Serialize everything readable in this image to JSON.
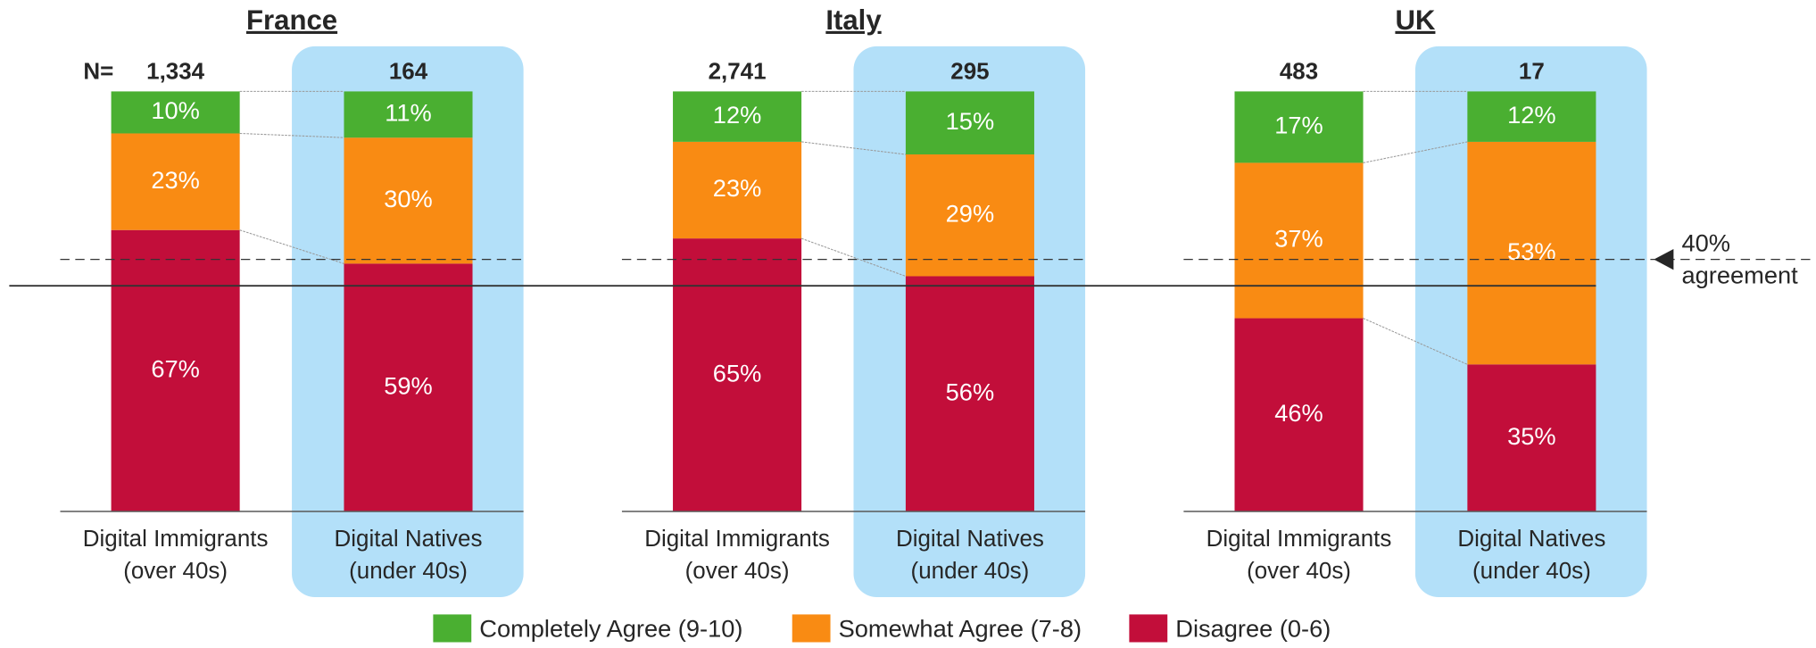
{
  "chart_data": [
    {
      "type": "bar",
      "stacked": true,
      "title": "France",
      "categories": [
        "Digital Immigrants\n(over 40s)",
        "Digital Natives\n(under 40s)"
      ],
      "n": [
        {
          "value": 1334,
          "label": "1,334"
        },
        164
      ],
      "ylim": [
        0,
        100
      ],
      "series": [
        {
          "name": "Disagree (0-6)",
          "color": "#c20e3a",
          "values": [
            67,
            59
          ],
          "value_labels": [
            "67%",
            "59%"
          ]
        },
        {
          "name": "Somewhat Agree (7-8)",
          "color": "#f98b13",
          "values": [
            23,
            30
          ],
          "value_labels": [
            "23%",
            "30%"
          ]
        },
        {
          "name": "Completely Agree (9-10)",
          "color": "#4aaf31",
          "values": [
            10,
            11
          ],
          "value_labels": [
            "10%",
            "11%"
          ]
        }
      ]
    },
    {
      "type": "bar",
      "stacked": true,
      "title": "Italy",
      "categories": [
        "Digital Immigrants\n(over 40s)",
        "Digital Natives\n(under 40s)"
      ],
      "n": [
        {
          "value": 2741,
          "label": "2,741"
        },
        295
      ],
      "ylim": [
        0,
        100
      ],
      "series": [
        {
          "name": "Disagree (0-6)",
          "color": "#c20e3a",
          "values": [
            65,
            56
          ],
          "value_labels": [
            "65%",
            "56%"
          ]
        },
        {
          "name": "Somewhat Agree (7-8)",
          "color": "#f98b13",
          "values": [
            23,
            29
          ],
          "value_labels": [
            "23%",
            "29%"
          ]
        },
        {
          "name": "Completely Agree (9-10)",
          "color": "#4aaf31",
          "values": [
            12,
            15
          ],
          "value_labels": [
            "12%",
            "15%"
          ]
        }
      ]
    },
    {
      "type": "bar",
      "stacked": true,
      "title": "UK",
      "categories": [
        "Digital Immigrants\n(over 40s)",
        "Digital Natives\n(under 40s)"
      ],
      "n": [
        483,
        17
      ],
      "ylim": [
        0,
        100
      ],
      "series": [
        {
          "name": "Disagree (0-6)",
          "color": "#c20e3a",
          "values": [
            46,
            35
          ],
          "value_labels": [
            "46%",
            "35%"
          ]
        },
        {
          "name": "Somewhat Agree (7-8)",
          "color": "#f98b13",
          "values": [
            37,
            53
          ],
          "value_labels": [
            "37%",
            "53%"
          ]
        },
        {
          "name": "Completely Agree (9-10)",
          "color": "#4aaf31",
          "values": [
            17,
            12
          ],
          "value_labels": [
            "17%",
            "12%"
          ]
        }
      ]
    }
  ],
  "n_prefix": "N=",
  "reference_line": {
    "value": 40,
    "label": "40%\nagreement"
  }
}
